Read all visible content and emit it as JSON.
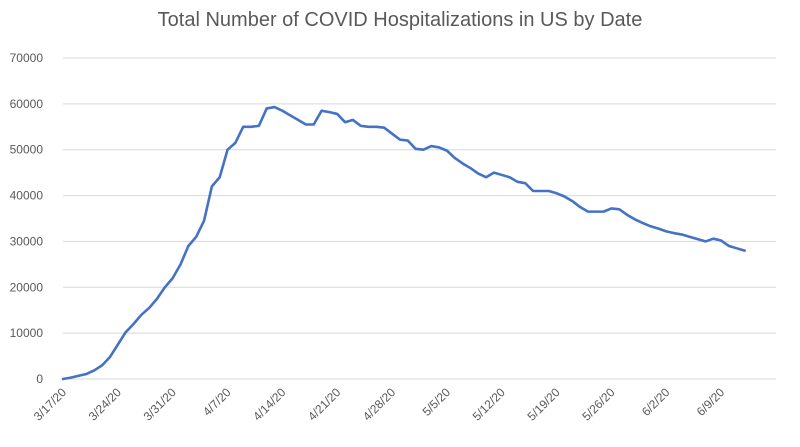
{
  "chart_data": {
    "type": "line",
    "title": "Total Number of COVID Hospitalizations in US by Date",
    "xlabel": "",
    "ylabel": "",
    "ylim": [
      0,
      70000
    ],
    "y_ticks": [
      0,
      10000,
      20000,
      30000,
      40000,
      50000,
      60000,
      70000
    ],
    "y_tick_labels": [
      "0",
      "10000",
      "20000",
      "30000",
      "40000",
      "50000",
      "60000",
      "70000"
    ],
    "x_tick_labels": [
      "3/17/20",
      "3/24/20",
      "3/31/20",
      "4/7/20",
      "4/14/20",
      "4/21/20",
      "4/28/20",
      "5/5/20",
      "5/12/20",
      "5/19/20",
      "5/26/20",
      "6/2/20",
      "6/9/20"
    ],
    "x_tick_day_index": [
      0,
      7,
      14,
      21,
      28,
      35,
      42,
      49,
      56,
      63,
      70,
      77,
      84
    ],
    "x_range_days": [
      0,
      91
    ],
    "grid": true,
    "legend": "none",
    "series": [
      {
        "name": "Hospitalizations",
        "color": "#4472c4",
        "values": [
          0,
          300,
          700,
          1100,
          1900,
          3000,
          4800,
          7500,
          10200,
          12000,
          14000,
          15500,
          17500,
          20000,
          22000,
          25000,
          29000,
          31000,
          34500,
          42000,
          44000,
          50000,
          51500,
          55000,
          55000,
          55200,
          59000,
          59300,
          58500,
          57500,
          56500,
          55500,
          55500,
          58500,
          58200,
          57800,
          56000,
          56500,
          55200,
          55000,
          55000,
          54800,
          53500,
          52200,
          52000,
          50200,
          50000,
          50800,
          50500,
          49800,
          48200,
          47000,
          46000,
          44800,
          44000,
          45000,
          44500,
          44000,
          43000,
          42700,
          41000,
          41000,
          41000,
          40500,
          39800,
          38800,
          37500,
          36500,
          36500,
          36500,
          37200,
          37000,
          35800,
          34800,
          34000,
          33300,
          32800,
          32200,
          31800,
          31500,
          31000,
          30500,
          30000,
          30600,
          30200,
          29000,
          28500,
          28000
        ]
      }
    ]
  }
}
